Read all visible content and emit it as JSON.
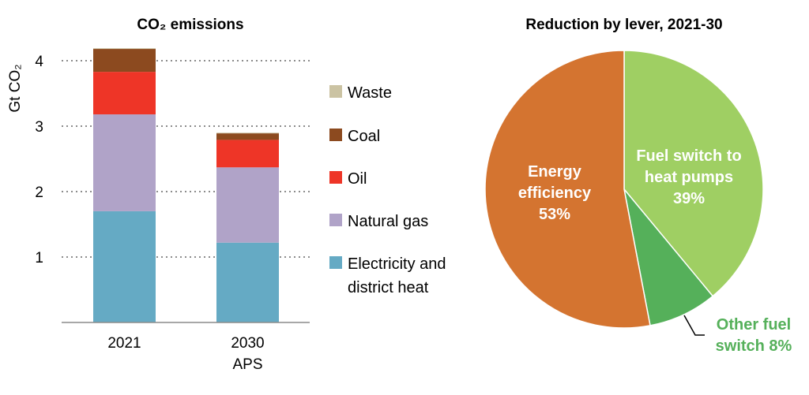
{
  "chart_data": [
    {
      "type": "bar",
      "stacked": true,
      "title": "CO₂ emissions",
      "ylabel": "Gt CO₂",
      "ylim": [
        0,
        4.2
      ],
      "yticks": [
        1,
        2,
        3,
        4
      ],
      "grid": "horizontal dotted",
      "categories": [
        [
          "2021"
        ],
        [
          "2030",
          "APS"
        ]
      ],
      "series": [
        {
          "name": "Electricity and district heat",
          "legend": [
            "Electricity and",
            "district heat"
          ],
          "color": "#65aac4",
          "values": [
            1.7,
            1.22
          ]
        },
        {
          "name": "Natural gas",
          "legend": [
            "Natural gas"
          ],
          "color": "#b0a3c8",
          "values": [
            1.48,
            1.15
          ]
        },
        {
          "name": "Oil",
          "legend": [
            "Oil"
          ],
          "color": "#ee3527",
          "values": [
            0.65,
            0.42
          ]
        },
        {
          "name": "Coal",
          "legend": [
            "Coal"
          ],
          "color": "#8c4a1f",
          "values": [
            0.35,
            0.1
          ]
        },
        {
          "name": "Waste",
          "legend": [
            "Waste"
          ],
          "color": "#cbc3a3",
          "values": [
            0.01,
            0.01
          ]
        }
      ],
      "legend_order": [
        "Waste",
        "Coal",
        "Oil",
        "Natural gas",
        "Electricity and district heat"
      ]
    },
    {
      "type": "pie",
      "title": "Reduction by lever, 2021-30",
      "slices": [
        {
          "name": "Fuel switch to heat pumps",
          "value": 39,
          "label": [
            "Fuel switch to",
            "heat pumps",
            "39%"
          ],
          "color": "#9fcf63"
        },
        {
          "name": "Other fuel switch",
          "value": 8,
          "label": [
            "Other fuel",
            "switch 8%"
          ],
          "color": "#55b05a",
          "label_color": "#55b05a"
        },
        {
          "name": "Energy efficiency",
          "value": 53,
          "label": [
            "Energy",
            "efficiency",
            "53%"
          ],
          "color": "#d47430"
        }
      ]
    }
  ]
}
